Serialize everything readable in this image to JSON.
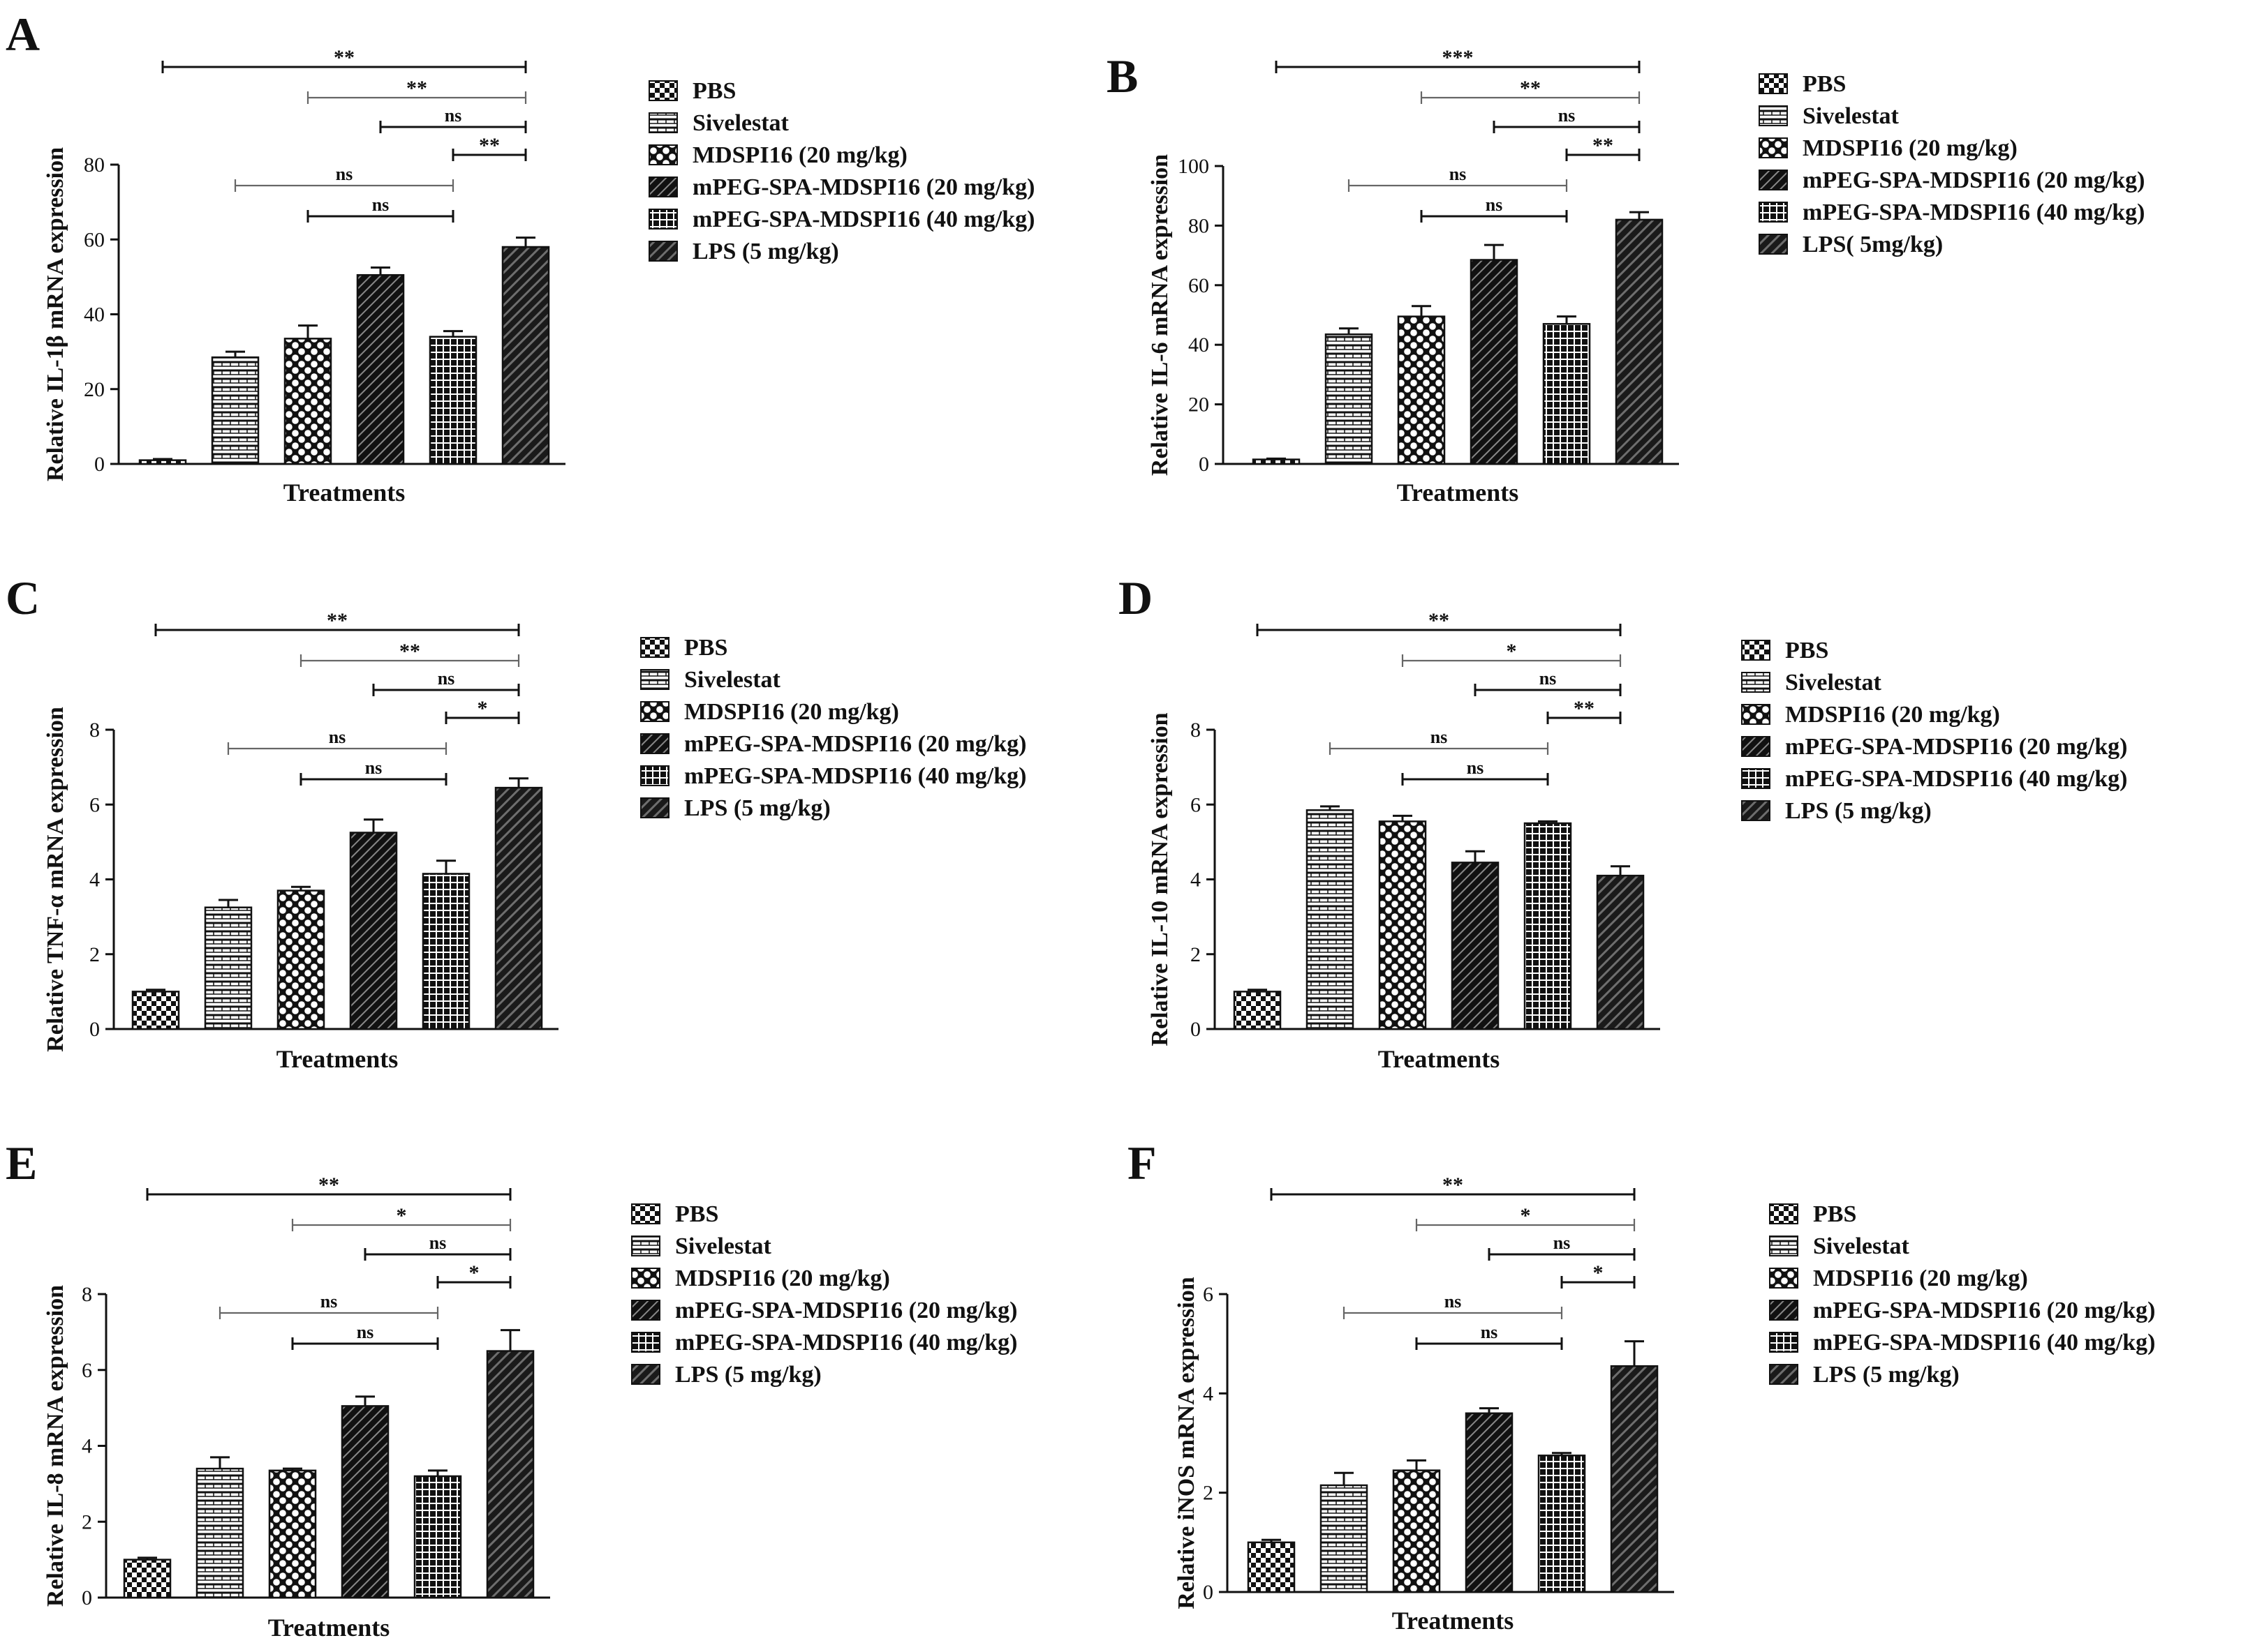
{
  "colors": {
    "ink": "#111111",
    "bar_fill_light": "#ffffff",
    "bar_fill_dark": "#1a1a1a",
    "bracket_gray": "#666666"
  },
  "chart_data": [
    {
      "panel": "A",
      "type": "bar",
      "title": "",
      "xlabel": "Treatments",
      "ylabel": "Relative IL-1β mRNA expression",
      "ylim": [
        0,
        80
      ],
      "yticks": [
        "0",
        "20",
        "40",
        "60",
        "80"
      ],
      "categories": [
        "PBS",
        "Sivelestat",
        "MDSPI16 (20 mg/kg)",
        "mPEG-SPA-MDSPI16 (20 mg/kg)",
        "mPEG-SPA-MDSPI16 (40 mg/kg)",
        "LPS (5 mg/kg)"
      ],
      "legend": [
        "PBS",
        "Sivelestat",
        "MDSPI16 (20 mg/kg)",
        "mPEG-SPA-MDSPI16 (20 mg/kg)",
        "mPEG-SPA-MDSPI16 (40 mg/kg)",
        "LPS (5 mg/kg)"
      ],
      "values": [
        1,
        28.5,
        33.5,
        50.5,
        34,
        58
      ],
      "errors": [
        0.3,
        1.5,
        3.5,
        2,
        1.5,
        2.5
      ],
      "comparisons": [
        {
          "from": 1,
          "to": 6,
          "label": "**"
        },
        {
          "from": 3,
          "to": 6,
          "label": "**"
        },
        {
          "from": 4,
          "to": 6,
          "label": "ns"
        },
        {
          "from": 5,
          "to": 6,
          "label": "**"
        },
        {
          "from": 2,
          "to": 5,
          "label": "ns"
        },
        {
          "from": 3,
          "to": 5,
          "label": "ns"
        }
      ]
    },
    {
      "panel": "B",
      "type": "bar",
      "title": "",
      "xlabel": "Treatments",
      "ylabel": "Relative IL-6 mRNA expression",
      "ylim": [
        0,
        100
      ],
      "yticks": [
        "0",
        "20",
        "40",
        "60",
        "80",
        "100"
      ],
      "categories": [
        "PBS",
        "Sivelestat",
        "MDSPI16 (20 mg/kg)",
        "mPEG-SPA-MDSPI16 (20 mg/kg)",
        "mPEG-SPA-MDSPI16 (40 mg/kg)",
        "LPS( 5mg/kg)"
      ],
      "legend": [
        "PBS",
        "Sivelestat",
        "MDSPI16 (20 mg/kg)",
        "mPEG-SPA-MDSPI16 (20 mg/kg)",
        "mPEG-SPA-MDSPI16 (40 mg/kg)",
        "LPS( 5mg/kg)"
      ],
      "values": [
        1.5,
        43.5,
        49.5,
        68.5,
        47,
        82
      ],
      "errors": [
        0.3,
        2,
        3.5,
        5,
        2.5,
        2.5
      ],
      "comparisons": [
        {
          "from": 1,
          "to": 6,
          "label": "***"
        },
        {
          "from": 3,
          "to": 6,
          "label": "**"
        },
        {
          "from": 4,
          "to": 6,
          "label": "ns"
        },
        {
          "from": 5,
          "to": 6,
          "label": "**"
        },
        {
          "from": 2,
          "to": 5,
          "label": "ns"
        },
        {
          "from": 3,
          "to": 5,
          "label": "ns"
        }
      ]
    },
    {
      "panel": "C",
      "type": "bar",
      "title": "",
      "xlabel": "Treatments",
      "ylabel": "Relative TNF-α mRNA expression",
      "ylim": [
        0,
        8
      ],
      "yticks": [
        "0",
        "2",
        "4",
        "6",
        "8"
      ],
      "categories": [
        "PBS",
        "Sivelestat",
        "MDSPI16 (20 mg/kg)",
        "mPEG-SPA-MDSPI16 (20 mg/kg)",
        "mPEG-SPA-MDSPI16 (40 mg/kg)",
        "LPS (5 mg/kg)"
      ],
      "legend": [
        "PBS",
        "Sivelestat",
        "MDSPI16 (20 mg/kg)",
        "mPEG-SPA-MDSPI16 (20 mg/kg)",
        "mPEG-SPA-MDSPI16 (40 mg/kg)",
        "LPS (5 mg/kg)"
      ],
      "values": [
        1,
        3.25,
        3.7,
        5.25,
        4.15,
        6.45
      ],
      "errors": [
        0.05,
        0.2,
        0.1,
        0.35,
        0.35,
        0.25
      ],
      "comparisons": [
        {
          "from": 1,
          "to": 6,
          "label": "**"
        },
        {
          "from": 3,
          "to": 6,
          "label": "**"
        },
        {
          "from": 4,
          "to": 6,
          "label": "ns"
        },
        {
          "from": 5,
          "to": 6,
          "label": "*"
        },
        {
          "from": 2,
          "to": 5,
          "label": "ns"
        },
        {
          "from": 3,
          "to": 5,
          "label": "ns"
        }
      ]
    },
    {
      "panel": "D",
      "type": "bar",
      "title": "",
      "xlabel": "Treatments",
      "ylabel": "Relative IL-10 mRNA expression",
      "ylim": [
        0,
        8
      ],
      "yticks": [
        "0",
        "2",
        "4",
        "6",
        "8"
      ],
      "categories": [
        "PBS",
        "Sivelestat",
        "MDSPI16 (20 mg/kg)",
        "mPEG-SPA-MDSPI16 (20 mg/kg)",
        "mPEG-SPA-MDSPI16 (40 mg/kg)",
        "LPS (5 mg/kg)"
      ],
      "legend": [
        "PBS",
        "Sivelestat",
        "MDSPI16 (20 mg/kg)",
        "mPEG-SPA-MDSPI16 (20 mg/kg)",
        "mPEG-SPA-MDSPI16 (40 mg/kg)",
        "LPS (5 mg/kg)"
      ],
      "values": [
        1,
        5.85,
        5.55,
        4.45,
        5.5,
        4.1
      ],
      "errors": [
        0.05,
        0.1,
        0.15,
        0.3,
        0.05,
        0.25
      ],
      "comparisons": [
        {
          "from": 1,
          "to": 6,
          "label": "**"
        },
        {
          "from": 3,
          "to": 6,
          "label": "*"
        },
        {
          "from": 4,
          "to": 6,
          "label": "ns"
        },
        {
          "from": 5,
          "to": 6,
          "label": "**"
        },
        {
          "from": 2,
          "to": 5,
          "label": "ns"
        },
        {
          "from": 3,
          "to": 5,
          "label": "ns"
        }
      ]
    },
    {
      "panel": "E",
      "type": "bar",
      "title": "",
      "xlabel": "Treatments",
      "ylabel": "Relative IL-8 mRNA expression",
      "ylim": [
        0,
        8
      ],
      "yticks": [
        "0",
        "2",
        "4",
        "6",
        "8"
      ],
      "categories": [
        "PBS",
        "Sivelestat",
        "MDSPI16 (20 mg/kg)",
        "mPEG-SPA-MDSPI16 (20 mg/kg)",
        "mPEG-SPA-MDSPI16 (40 mg/kg)",
        "LPS (5 mg/kg)"
      ],
      "legend": [
        "PBS",
        "Sivelestat",
        "MDSPI16 (20 mg/kg)",
        "mPEG-SPA-MDSPI16 (20 mg/kg)",
        "mPEG-SPA-MDSPI16 (40 mg/kg)",
        "LPS (5 mg/kg)"
      ],
      "values": [
        1,
        3.4,
        3.35,
        5.05,
        3.2,
        6.5
      ],
      "errors": [
        0.05,
        0.3,
        0.05,
        0.25,
        0.15,
        0.55
      ],
      "comparisons": [
        {
          "from": 1,
          "to": 6,
          "label": "**"
        },
        {
          "from": 3,
          "to": 6,
          "label": "*"
        },
        {
          "from": 4,
          "to": 6,
          "label": "ns"
        },
        {
          "from": 5,
          "to": 6,
          "label": "*"
        },
        {
          "from": 2,
          "to": 5,
          "label": "ns"
        },
        {
          "from": 3,
          "to": 5,
          "label": "ns"
        }
      ]
    },
    {
      "panel": "F",
      "type": "bar",
      "title": "",
      "xlabel": "Treatments",
      "ylabel": "Relative iNOS mRNA expression",
      "ylim": [
        0,
        6
      ],
      "yticks": [
        "0",
        "2",
        "4",
        "6"
      ],
      "categories": [
        "PBS",
        "Sivelestat",
        "MDSPI16 (20 mg/kg)",
        "mPEG-SPA-MDSPI16 (20 mg/kg)",
        "mPEG-SPA-MDSPI16 (40 mg/kg)",
        "LPS (5 mg/kg)"
      ],
      "legend": [
        "PBS",
        "Sivelestat",
        "MDSPI16 (20 mg/kg)",
        "mPEG-SPA-MDSPI16 (20 mg/kg)",
        "mPEG-SPA-MDSPI16 (40 mg/kg)",
        "LPS (5 mg/kg)"
      ],
      "values": [
        1,
        2.15,
        2.45,
        3.6,
        2.75,
        4.55
      ],
      "errors": [
        0.05,
        0.25,
        0.2,
        0.1,
        0.05,
        0.5
      ],
      "comparisons": [
        {
          "from": 1,
          "to": 6,
          "label": "**"
        },
        {
          "from": 3,
          "to": 6,
          "label": "*"
        },
        {
          "from": 4,
          "to": 6,
          "label": "ns"
        },
        {
          "from": 5,
          "to": 6,
          "label": "*"
        },
        {
          "from": 2,
          "to": 5,
          "label": "ns"
        },
        {
          "from": 3,
          "to": 5,
          "label": "ns"
        }
      ]
    }
  ]
}
